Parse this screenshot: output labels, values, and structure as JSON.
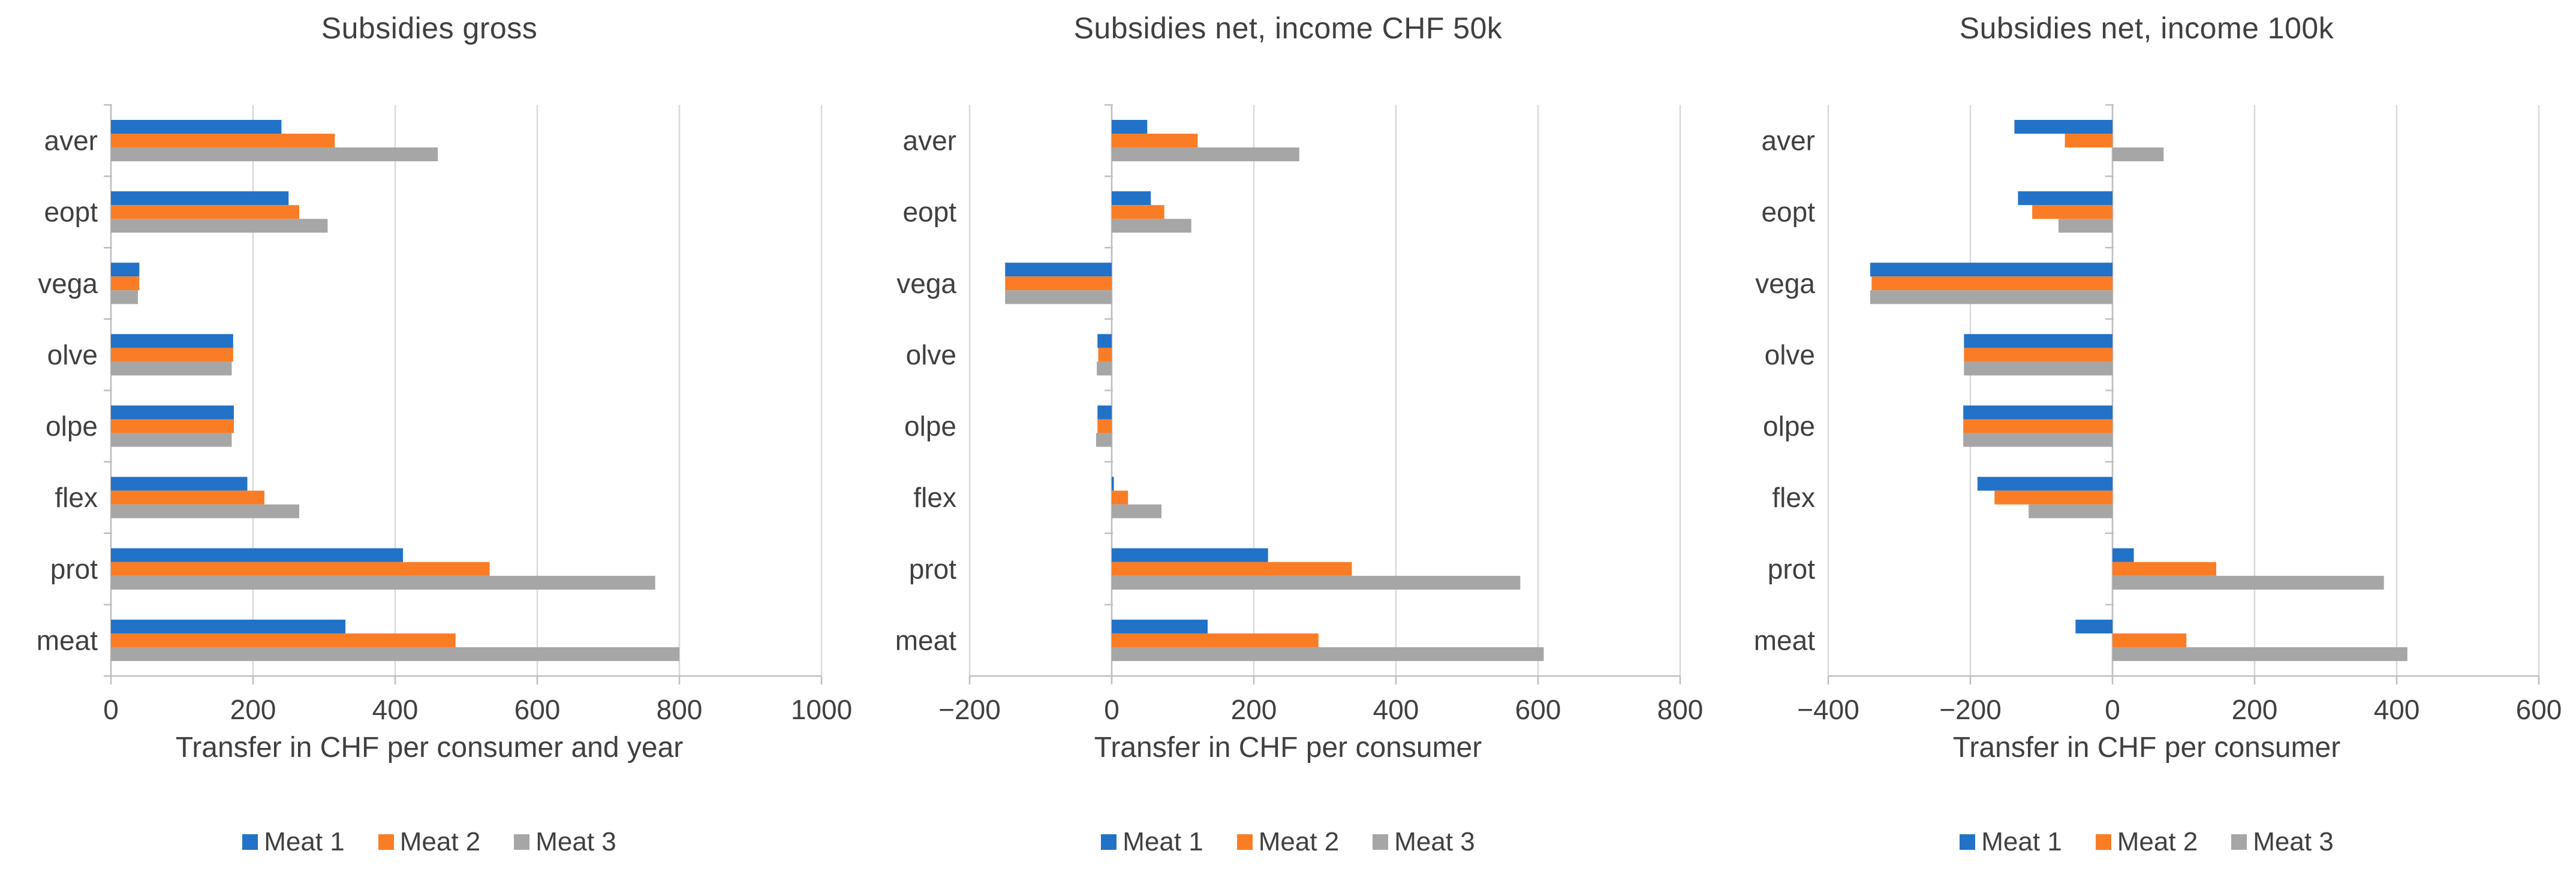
{
  "page": {
    "background": "#FFFFFF"
  },
  "colors": {
    "series_blue": "#2272C8",
    "series_orange": "#FA7D26",
    "series_gray": "#A6A6A6",
    "gridline": "#D9D9D9",
    "axis_line": "#BFBFBF",
    "text": "#404040"
  },
  "legend": {
    "items": [
      {
        "label": "Meat 1",
        "color": "#2272C8"
      },
      {
        "label": "Meat 2",
        "color": "#FA7D26"
      },
      {
        "label": "Meat 3",
        "color": "#A6A6A6"
      }
    ]
  },
  "chart_data": [
    {
      "type": "bar",
      "orientation": "horizontal",
      "title": "Subsidies gross",
      "xlabel": "Transfer in CHF per consumer and year",
      "categories": [
        "aver",
        "eopt",
        "vega",
        "olve",
        "olpe",
        "flex",
        "prot",
        "meat"
      ],
      "series": [
        {
          "name": "Meat 1",
          "color": "#2272C8",
          "values": [
            240,
            250,
            40,
            172,
            173,
            192,
            411,
            330
          ]
        },
        {
          "name": "Meat 2",
          "color": "#FA7D26",
          "values": [
            315,
            265,
            40,
            172,
            173,
            216,
            533,
            485
          ]
        },
        {
          "name": "Meat 3",
          "color": "#A6A6A6",
          "values": [
            460,
            305,
            38,
            170,
            170,
            265,
            766,
            800
          ]
        }
      ],
      "xlim": [
        0,
        1000
      ],
      "xticks": [
        0,
        200,
        400,
        600,
        800,
        1000
      ],
      "xtick_labels": [
        "0",
        "200",
        "400",
        "600",
        "800",
        "1000"
      ],
      "grid": true,
      "legend_position": "bottom"
    },
    {
      "type": "bar",
      "orientation": "horizontal",
      "title": "Subsidies net, income CHF 50k",
      "xlabel": "Transfer in CHF per consumer",
      "categories": [
        "aver",
        "eopt",
        "vega",
        "olve",
        "olpe",
        "flex",
        "prot",
        "meat"
      ],
      "series": [
        {
          "name": "Meat 1",
          "color": "#2272C8",
          "values": [
            50,
            55,
            -150,
            -20,
            -20,
            3,
            220,
            135
          ]
        },
        {
          "name": "Meat 2",
          "color": "#FA7D26",
          "values": [
            121,
            74,
            -150,
            -19,
            -20,
            23,
            338,
            291
          ]
        },
        {
          "name": "Meat 3",
          "color": "#A6A6A6",
          "values": [
            264,
            112,
            -150,
            -21,
            -22,
            70,
            575,
            608
          ]
        }
      ],
      "xlim": [
        -200,
        800
      ],
      "xticks": [
        -200,
        0,
        200,
        400,
        600,
        800
      ],
      "xtick_labels": [
        "−200",
        "0",
        "200",
        "400",
        "600",
        "800"
      ],
      "grid": true,
      "legend_position": "bottom"
    },
    {
      "type": "bar",
      "orientation": "horizontal",
      "title": "Subsidies net, income 100k",
      "xlabel": "Transfer in CHF per consumer",
      "categories": [
        "aver",
        "eopt",
        "vega",
        "olve",
        "olpe",
        "flex",
        "prot",
        "meat"
      ],
      "series": [
        {
          "name": "Meat 1",
          "color": "#2272C8",
          "values": [
            -138,
            -133,
            -341,
            -209,
            -210,
            -190,
            30,
            -52
          ]
        },
        {
          "name": "Meat 2",
          "color": "#FA7D26",
          "values": [
            -67,
            -113,
            -339,
            -209,
            -210,
            -166,
            146,
            104
          ]
        },
        {
          "name": "Meat 3",
          "color": "#A6A6A6",
          "values": [
            72,
            -76,
            -341,
            -209,
            -210,
            -118,
            382,
            415
          ]
        }
      ],
      "xlim": [
        -400,
        600
      ],
      "xticks": [
        -400,
        -200,
        0,
        200,
        400,
        600
      ],
      "xtick_labels": [
        "−400",
        "−200",
        "0",
        "200",
        "400",
        "600"
      ],
      "grid": true,
      "legend_position": "bottom"
    }
  ]
}
